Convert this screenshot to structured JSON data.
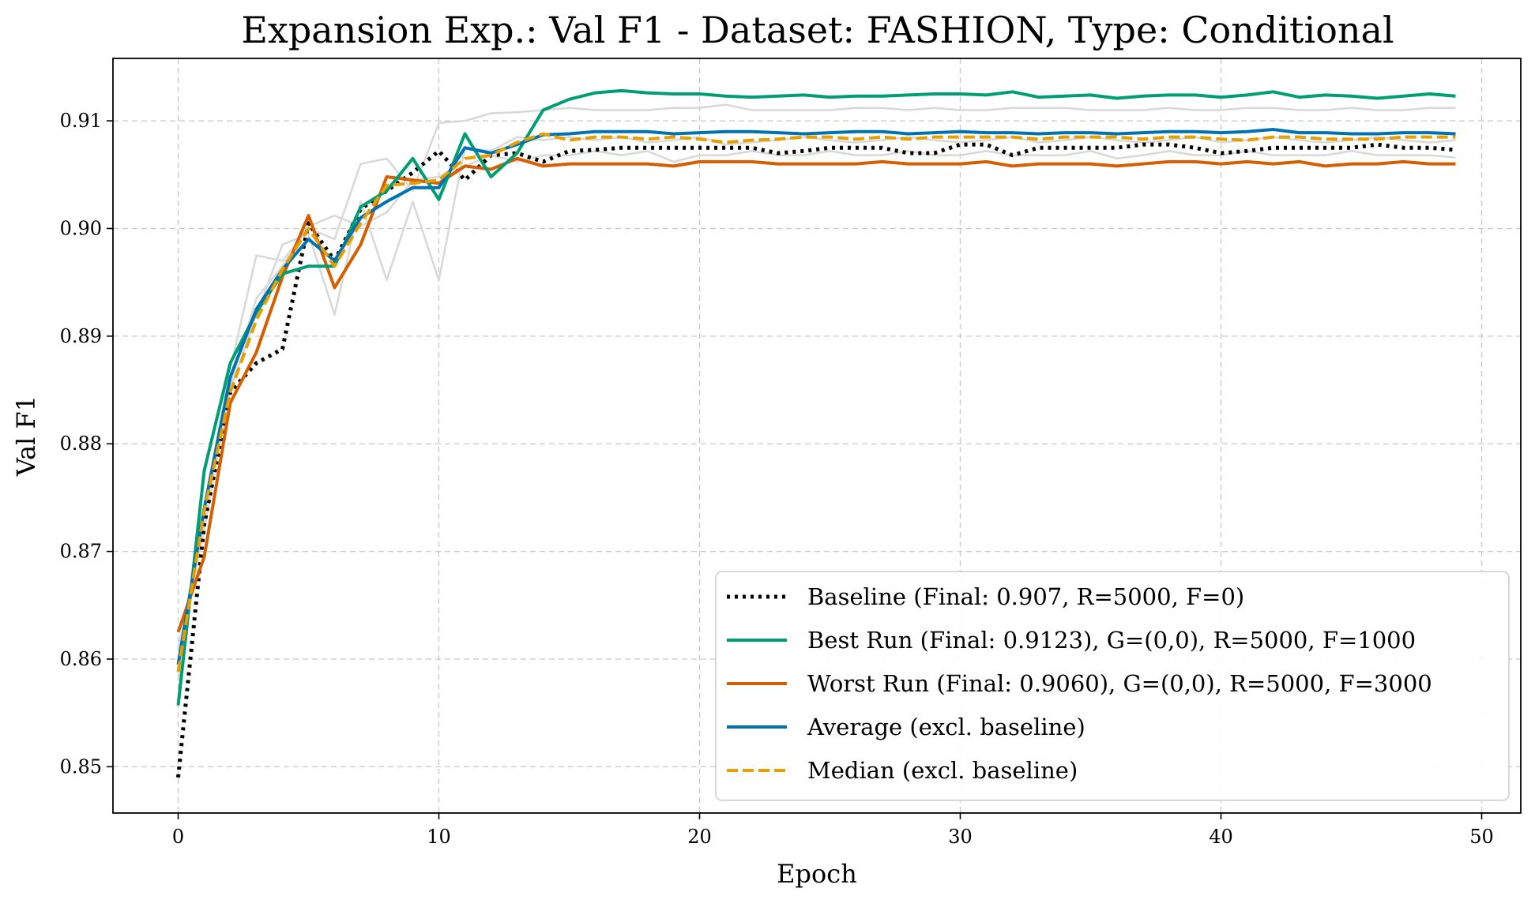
{
  "chart_data": {
    "type": "line",
    "title": "Expansion Exp.: Val F1 - Dataset: FASHION, Type: Conditional",
    "xlabel": "Epoch",
    "ylabel": "Val F1",
    "xlim": [
      -2.5,
      51.5
    ],
    "ylim": [
      0.8457,
      0.9158
    ],
    "xticks": [
      0,
      10,
      20,
      30,
      40,
      50
    ],
    "xtick_labels": [
      "0",
      "10",
      "20",
      "30",
      "40",
      "50"
    ],
    "yticks": [
      0.85,
      0.86,
      0.87,
      0.88,
      0.89,
      0.9,
      0.91
    ],
    "ytick_labels": [
      "0.85",
      "0.86",
      "0.87",
      "0.88",
      "0.89",
      "0.90",
      "0.91"
    ],
    "grid": true,
    "legend_position": "lower-right",
    "x": [
      0,
      1,
      2,
      3,
      4,
      5,
      6,
      7,
      8,
      9,
      10,
      11,
      12,
      13,
      14,
      15,
      16,
      17,
      18,
      19,
      20,
      21,
      22,
      23,
      24,
      25,
      26,
      27,
      28,
      29,
      30,
      31,
      32,
      33,
      34,
      35,
      36,
      37,
      38,
      39,
      40,
      41,
      42,
      43,
      44,
      45,
      46,
      47,
      48,
      49
    ],
    "background_runs": [
      {
        "color": "#d9d9d9",
        "values": [
          0.858,
          0.874,
          0.887,
          0.8975,
          0.897,
          0.9,
          0.899,
          0.906,
          0.9065,
          0.9035,
          0.9098,
          0.91,
          0.9107,
          0.9108,
          0.911,
          0.9112,
          0.911,
          0.911,
          0.911,
          0.9112,
          0.9112,
          0.9115,
          0.911,
          0.911,
          0.911,
          0.911,
          0.9112,
          0.9112,
          0.911,
          0.9112,
          0.911,
          0.911,
          0.9112,
          0.9112,
          0.9112,
          0.911,
          0.911,
          0.911,
          0.9112,
          0.911,
          0.911,
          0.9112,
          0.9112,
          0.911,
          0.911,
          0.9112,
          0.911,
          0.911,
          0.9112,
          0.9112
        ]
      },
      {
        "color": "#d9d9d9",
        "values": [
          0.86,
          0.873,
          0.885,
          0.892,
          0.8985,
          0.8995,
          0.892,
          0.9025,
          0.8952,
          0.9025,
          0.8952,
          0.9075,
          0.9072,
          0.9085,
          0.9082,
          0.9085,
          0.9082,
          0.9085,
          0.908,
          0.9082,
          0.9085,
          0.9078,
          0.908,
          0.9082,
          0.9085,
          0.9082,
          0.908,
          0.9082,
          0.9085,
          0.9082,
          0.908,
          0.9082,
          0.9085,
          0.908,
          0.9082,
          0.9085,
          0.9082,
          0.908,
          0.9082,
          0.9085,
          0.908,
          0.9082,
          0.9085,
          0.9082,
          0.908,
          0.9082,
          0.9085,
          0.9082,
          0.908,
          0.9082
        ]
      },
      {
        "color": "#d9d9d9",
        "values": [
          0.861,
          0.872,
          0.8855,
          0.8935,
          0.8965,
          0.9002,
          0.9012,
          0.9002,
          0.9015,
          0.9045,
          0.9048,
          0.9058,
          0.9068,
          0.9062,
          0.9068,
          0.9068,
          0.9072,
          0.9068,
          0.9072,
          0.9062,
          0.9068,
          0.9068,
          0.9072,
          0.9068,
          0.9068,
          0.9072,
          0.9068,
          0.9068,
          0.9072,
          0.9068,
          0.9068,
          0.9072,
          0.9068,
          0.9068,
          0.9068,
          0.9072,
          0.9065,
          0.9068,
          0.9072,
          0.9068,
          0.9068,
          0.9072,
          0.9068,
          0.9068,
          0.9068,
          0.9072,
          0.9068,
          0.9068,
          0.9068,
          0.9066
        ]
      }
    ],
    "series": [
      {
        "name": "Baseline (Final: 0.907, R=5000, F=0)",
        "color": "#000000",
        "style": "dotted",
        "values": [
          0.849,
          0.8725,
          0.8848,
          0.8875,
          0.8888,
          0.9005,
          0.897,
          0.9018,
          0.9035,
          0.9052,
          0.9072,
          0.9045,
          0.9068,
          0.907,
          0.9062,
          0.9072,
          0.9073,
          0.9075,
          0.9075,
          0.9075,
          0.9075,
          0.9075,
          0.9075,
          0.907,
          0.9072,
          0.9075,
          0.9075,
          0.9075,
          0.907,
          0.907,
          0.9078,
          0.9078,
          0.9068,
          0.9075,
          0.9075,
          0.9075,
          0.9075,
          0.9078,
          0.9078,
          0.9075,
          0.907,
          0.9072,
          0.9075,
          0.9075,
          0.9075,
          0.9075,
          0.9078,
          0.9075,
          0.9075,
          0.9073
        ]
      },
      {
        "name": "Best Run (Final: 0.9123), G=(0,0), R=5000, F=1000",
        "color": "#009e73",
        "style": "solid",
        "values": [
          0.8557,
          0.8775,
          0.8875,
          0.8922,
          0.8958,
          0.8965,
          0.8965,
          0.902,
          0.9035,
          0.9065,
          0.9027,
          0.9088,
          0.9048,
          0.907,
          0.911,
          0.912,
          0.9126,
          0.9128,
          0.9126,
          0.9125,
          0.9125,
          0.9123,
          0.9122,
          0.9123,
          0.9124,
          0.9122,
          0.9123,
          0.9123,
          0.9124,
          0.9125,
          0.9125,
          0.9124,
          0.9127,
          0.9122,
          0.9123,
          0.9124,
          0.9121,
          0.9123,
          0.9124,
          0.9124,
          0.9122,
          0.9124,
          0.9127,
          0.9122,
          0.9124,
          0.9123,
          0.9121,
          0.9123,
          0.9125,
          0.9123
        ]
      },
      {
        "name": "Worst Run (Final: 0.9060), G=(0,0), R=5000, F=3000",
        "color": "#d55e00",
        "style": "solid",
        "values": [
          0.8625,
          0.8695,
          0.8838,
          0.8885,
          0.8955,
          0.9012,
          0.8945,
          0.8985,
          0.9048,
          0.9045,
          0.9042,
          0.9058,
          0.9055,
          0.9065,
          0.9058,
          0.906,
          0.906,
          0.906,
          0.906,
          0.9058,
          0.9062,
          0.9062,
          0.9062,
          0.906,
          0.906,
          0.906,
          0.906,
          0.9062,
          0.906,
          0.906,
          0.906,
          0.9062,
          0.9058,
          0.906,
          0.906,
          0.906,
          0.9058,
          0.906,
          0.9062,
          0.9062,
          0.906,
          0.9062,
          0.906,
          0.9062,
          0.9058,
          0.906,
          0.906,
          0.9062,
          0.906,
          0.906
        ]
      },
      {
        "name": "Average (excl. baseline)",
        "color": "#0072b2",
        "style": "solid",
        "values": [
          0.8595,
          0.874,
          0.8862,
          0.8925,
          0.8962,
          0.899,
          0.897,
          0.901,
          0.9025,
          0.9038,
          0.9038,
          0.9075,
          0.907,
          0.9078,
          0.9087,
          0.9088,
          0.909,
          0.909,
          0.909,
          0.9088,
          0.9089,
          0.909,
          0.909,
          0.9089,
          0.9088,
          0.9089,
          0.909,
          0.909,
          0.9088,
          0.9089,
          0.909,
          0.9089,
          0.9089,
          0.9088,
          0.9089,
          0.9089,
          0.9088,
          0.9089,
          0.909,
          0.909,
          0.9089,
          0.909,
          0.9092,
          0.9089,
          0.9089,
          0.9088,
          0.9088,
          0.9089,
          0.9089,
          0.9088
        ]
      },
      {
        "name": "Median (excl. baseline)",
        "color": "#e69f00",
        "style": "dashed",
        "values": [
          0.8588,
          0.8738,
          0.8848,
          0.8915,
          0.8962,
          0.9,
          0.8965,
          0.9005,
          0.904,
          0.9042,
          0.9045,
          0.9065,
          0.9068,
          0.908,
          0.9088,
          0.9082,
          0.9085,
          0.9085,
          0.9083,
          0.9085,
          0.9083,
          0.908,
          0.9082,
          0.9083,
          0.9085,
          0.9085,
          0.9083,
          0.9085,
          0.9083,
          0.9085,
          0.9085,
          0.9085,
          0.9085,
          0.9083,
          0.9085,
          0.9085,
          0.9085,
          0.9083,
          0.9085,
          0.9085,
          0.9083,
          0.9082,
          0.9085,
          0.9085,
          0.9083,
          0.9083,
          0.9083,
          0.9085,
          0.9085,
          0.9085
        ]
      }
    ]
  }
}
